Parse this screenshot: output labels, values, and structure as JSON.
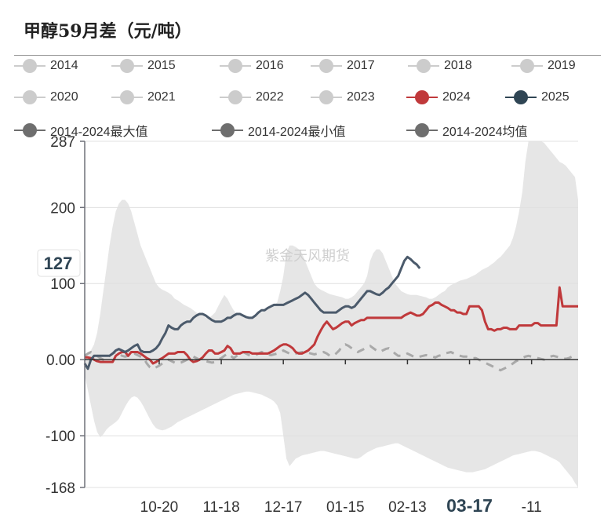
{
  "title": "甲醇59月差（元/吨）",
  "legend": [
    {
      "label": "2014",
      "color": "#cccccc",
      "active": false
    },
    {
      "label": "2015",
      "color": "#cccccc",
      "active": false
    },
    {
      "label": "2016",
      "color": "#cccccc",
      "active": false
    },
    {
      "label": "2017",
      "color": "#cccccc",
      "active": false
    },
    {
      "label": "2018",
      "color": "#cccccc",
      "active": false
    },
    {
      "label": "2019",
      "color": "#cccccc",
      "active": false
    },
    {
      "label": "2020",
      "color": "#cccccc",
      "active": false
    },
    {
      "label": "2021",
      "color": "#cccccc",
      "active": false
    },
    {
      "label": "2022",
      "color": "#cccccc",
      "active": false
    },
    {
      "label": "2023",
      "color": "#cccccc",
      "active": false
    },
    {
      "label": "2024",
      "color": "#c0393b",
      "active": true
    },
    {
      "label": "2025",
      "color": "#2f4554",
      "active": true
    },
    {
      "label": "2014-2024最大值",
      "color": "#6e6e6e",
      "active": true
    },
    {
      "label": "2014-2024最小值",
      "color": "#6e6e6e",
      "active": true
    },
    {
      "label": "2014-2024均值",
      "color": "#6e6e6e",
      "active": true
    }
  ],
  "watermark": "紫金天风期货",
  "colors": {
    "s2024": "#c0393b",
    "s2025": "#4b5a6b",
    "band": "#e6e6e6",
    "avg": "#a9a9a9",
    "axis": "#6e7079",
    "grid": "#e0e0e0"
  },
  "chart_data": {
    "type": "area",
    "title": "甲醇59月差（元/吨）",
    "ylim": [
      -168,
      287
    ],
    "y_ticks": [
      287,
      200,
      100,
      0,
      -100,
      -168
    ],
    "y_tick_labels": [
      "287",
      "200",
      "100",
      "0.00",
      "-100",
      "-168"
    ],
    "x_tick_labels": [
      "10-20",
      "11-18",
      "12-17",
      "01-15",
      "02-13",
      "03-17",
      "-11"
    ],
    "x_tick_index": [
      24,
      44,
      64,
      84,
      104,
      124,
      144
    ],
    "highlight_x_label": "03-17",
    "highlight_y_label": "127",
    "n_points": 160,
    "band_max": [
      5,
      8,
      12,
      20,
      35,
      60,
      90,
      120,
      150,
      175,
      195,
      205,
      210,
      210,
      205,
      195,
      180,
      165,
      150,
      140,
      130,
      120,
      110,
      100,
      95,
      92,
      90,
      88,
      85,
      80,
      78,
      75,
      72,
      70,
      68,
      65,
      62,
      60,
      58,
      55,
      55,
      58,
      62,
      70,
      78,
      85,
      80,
      72,
      65,
      60,
      58,
      56,
      55,
      55,
      56,
      58,
      60,
      62,
      65,
      68,
      70,
      72,
      75,
      90,
      110,
      140,
      150,
      150,
      148,
      145,
      140,
      130,
      120,
      110,
      100,
      95,
      92,
      90,
      88,
      86,
      85,
      84,
      83,
      82,
      80,
      80,
      82,
      85,
      90,
      95,
      100,
      110,
      130,
      140,
      145,
      145,
      140,
      130,
      120,
      110,
      100,
      95,
      90,
      88,
      86,
      85,
      85,
      85,
      84,
      83,
      82,
      80,
      80,
      82,
      85,
      88,
      90,
      95,
      98,
      100,
      102,
      104,
      105,
      106,
      108,
      110,
      112,
      115,
      118,
      120,
      122,
      125,
      128,
      132,
      135,
      140,
      145,
      150,
      160,
      175,
      195,
      220,
      260,
      287,
      287,
      287,
      287,
      287,
      285,
      280,
      275,
      270,
      265,
      260,
      258,
      255,
      250,
      245,
      240,
      210
    ],
    "band_min": [
      -20,
      -40,
      -60,
      -80,
      -95,
      -102,
      -98,
      -92,
      -88,
      -85,
      -82,
      -78,
      -70,
      -62,
      -55,
      -50,
      -48,
      -50,
      -55,
      -62,
      -70,
      -78,
      -85,
      -90,
      -92,
      -93,
      -92,
      -90,
      -88,
      -85,
      -82,
      -80,
      -78,
      -76,
      -74,
      -72,
      -70,
      -68,
      -66,
      -64,
      -62,
      -60,
      -58,
      -56,
      -54,
      -52,
      -50,
      -48,
      -46,
      -45,
      -44,
      -43,
      -42,
      -42,
      -43,
      -44,
      -45,
      -46,
      -48,
      -50,
      -52,
      -55,
      -60,
      -70,
      -100,
      -130,
      -140,
      -135,
      -130,
      -128,
      -126,
      -125,
      -124,
      -123,
      -122,
      -121,
      -120,
      -120,
      -121,
      -122,
      -123,
      -124,
      -125,
      -126,
      -127,
      -128,
      -129,
      -130,
      -130,
      -128,
      -125,
      -122,
      -120,
      -118,
      -116,
      -115,
      -114,
      -113,
      -112,
      -111,
      -110,
      -110,
      -112,
      -114,
      -116,
      -118,
      -120,
      -122,
      -124,
      -126,
      -128,
      -130,
      -132,
      -134,
      -136,
      -138,
      -140,
      -142,
      -143,
      -144,
      -145,
      -146,
      -147,
      -148,
      -148,
      -148,
      -147,
      -146,
      -145,
      -144,
      -142,
      -140,
      -138,
      -136,
      -134,
      -132,
      -130,
      -128,
      -126,
      -125,
      -124,
      -123,
      -122,
      -121,
      -120,
      -120,
      -121,
      -122,
      -124,
      -126,
      -128,
      -130,
      -132,
      -135,
      -140,
      -145,
      -150,
      -155,
      -162,
      -168
    ],
    "avg": [
      5,
      8,
      10,
      8,
      5,
      2,
      0,
      2,
      5,
      8,
      10,
      8,
      5,
      4,
      5,
      6,
      8,
      6,
      4,
      2,
      -5,
      -10,
      -12,
      -10,
      -8,
      -5,
      -2,
      0,
      -2,
      -4,
      -5,
      -4,
      -2,
      0,
      2,
      4,
      2,
      0,
      -2,
      -2,
      -3,
      -4,
      -3,
      0,
      2,
      5,
      8,
      5,
      2,
      5,
      8,
      10,
      8,
      6,
      5,
      6,
      8,
      10,
      9,
      7,
      6,
      7,
      8,
      10,
      12,
      10,
      8,
      7,
      8,
      9,
      10,
      10,
      9,
      8,
      7,
      8,
      9,
      10,
      8,
      5,
      5,
      8,
      12,
      18,
      20,
      18,
      15,
      12,
      10,
      12,
      14,
      16,
      18,
      15,
      12,
      10,
      12,
      14,
      15,
      12,
      8,
      5,
      5,
      6,
      8,
      6,
      4,
      3,
      4,
      5,
      6,
      5,
      4,
      3,
      5,
      6,
      8,
      9,
      10,
      8,
      6,
      5,
      4,
      4,
      3,
      2,
      2,
      0,
      -2,
      -4,
      -6,
      -8,
      -10,
      -12,
      -14,
      -12,
      -10,
      -8,
      -5,
      -2,
      0,
      2,
      4,
      5,
      4,
      3,
      2,
      1,
      0,
      2,
      4,
      5,
      4,
      3,
      2,
      1,
      2,
      4
    ],
    "series": [
      {
        "name": "2024",
        "values": [
          3,
          3,
          2,
          0,
          -2,
          -3,
          -3,
          -3,
          -3,
          -3,
          5,
          8,
          10,
          10,
          5,
          10,
          10,
          10,
          8,
          5,
          2,
          0,
          -5,
          -3,
          0,
          2,
          5,
          8,
          8,
          8,
          10,
          10,
          10,
          6,
          0,
          -3,
          -2,
          0,
          3,
          8,
          12,
          12,
          8,
          8,
          10,
          12,
          18,
          15,
          8,
          8,
          8,
          10,
          10,
          10,
          8,
          8,
          8,
          8,
          8,
          8,
          10,
          12,
          15,
          18,
          20,
          20,
          18,
          15,
          10,
          8,
          8,
          10,
          12,
          16,
          20,
          30,
          38,
          45,
          50,
          45,
          40,
          42,
          45,
          48,
          50,
          50,
          45,
          48,
          50,
          52,
          52,
          55,
          55,
          55,
          55,
          55,
          55,
          55,
          55,
          55,
          55,
          55,
          55,
          58,
          60,
          62,
          60,
          58,
          58,
          60,
          65,
          70,
          72,
          75,
          75,
          72,
          70,
          68,
          65,
          65,
          62,
          62,
          60,
          60,
          70,
          70,
          70,
          70,
          65,
          50,
          40,
          40,
          38,
          40,
          40,
          42,
          42,
          40,
          40,
          40,
          45,
          45,
          45,
          45,
          45,
          48,
          48,
          45,
          45,
          45,
          45,
          45,
          45,
          95,
          70,
          70,
          70,
          70,
          70,
          70
        ],
        "end_index": 160
      },
      {
        "name": "2025",
        "values": [
          -5,
          -12,
          0,
          5,
          5,
          5,
          5,
          5,
          5,
          8,
          12,
          14,
          12,
          10,
          12,
          15,
          18,
          20,
          12,
          10,
          10,
          10,
          12,
          15,
          20,
          28,
          35,
          45,
          42,
          40,
          40,
          45,
          48,
          50,
          50,
          55,
          58,
          60,
          60,
          58,
          55,
          52,
          50,
          50,
          50,
          52,
          55,
          55,
          58,
          60,
          60,
          58,
          56,
          55,
          55,
          58,
          62,
          65,
          65,
          68,
          70,
          72,
          72,
          72,
          72,
          74,
          76,
          78,
          80,
          82,
          85,
          88,
          85,
          80,
          75,
          70,
          65,
          62,
          62,
          62,
          62,
          62,
          65,
          68,
          70,
          70,
          68,
          70,
          75,
          80,
          85,
          90,
          90,
          88,
          86,
          85,
          88,
          92,
          95,
          100,
          105,
          110,
          120,
          130,
          135,
          132,
          128,
          125,
          120
        ]
      }
    ]
  }
}
